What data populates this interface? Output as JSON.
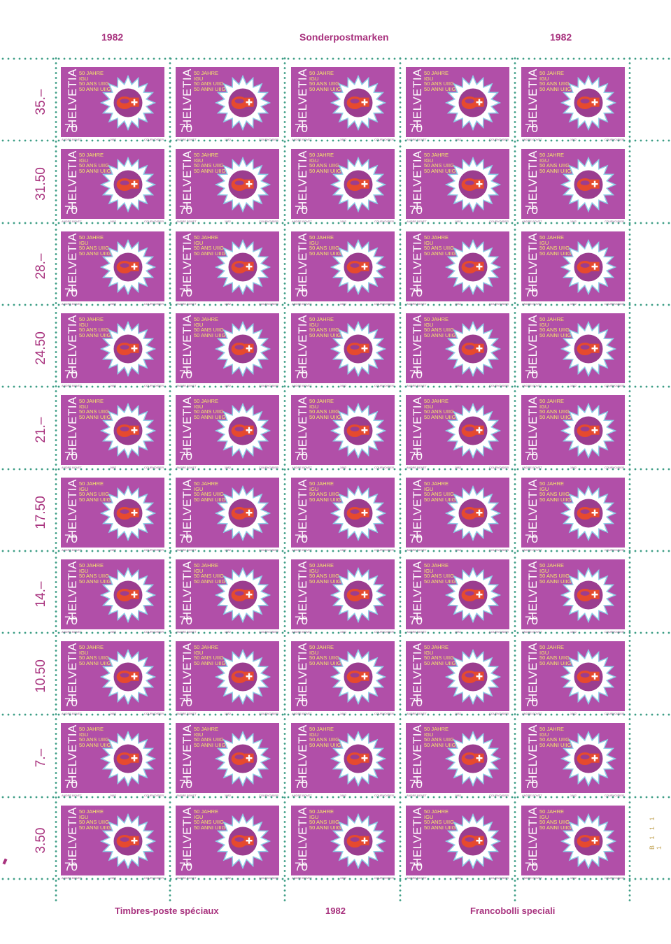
{
  "sheet": {
    "top_left_year": "1982",
    "top_center_title": "Sonderpostmarken",
    "top_right_year": "1982",
    "bottom_left_title": "Timbres-poste spéciaux",
    "bottom_center_year": "1982",
    "bottom_right_title": "Francobolli speciali",
    "row_values": [
      "35.–",
      "31.50",
      "28.–",
      "24.50",
      "21.–",
      "17.50",
      "14.–",
      "10.50",
      "7.–",
      "3.50"
    ],
    "sheet_number": "B 1 1 1 1"
  },
  "stamp": {
    "country": "HELVETIA",
    "value": "70",
    "legend_lines": [
      "50 JAHRE IGU",
      "50 ANS UIIG",
      "50 ANNI UIIG"
    ],
    "designer": "ANDRE BOVET",
    "year": "1982",
    "printer": "COURVOISIER",
    "colors": {
      "background": "#b14fa8",
      "legend": "#f5e56b",
      "flame_outer": "#8fd0e8",
      "flame_inner": "#ffffff",
      "disc": "#9b3d8f",
      "logo": "#e64a2e",
      "perforation": "#3e9e86"
    },
    "icon": "gas-flame-sun-icon"
  },
  "grid": {
    "rows": 10,
    "columns": 5
  }
}
